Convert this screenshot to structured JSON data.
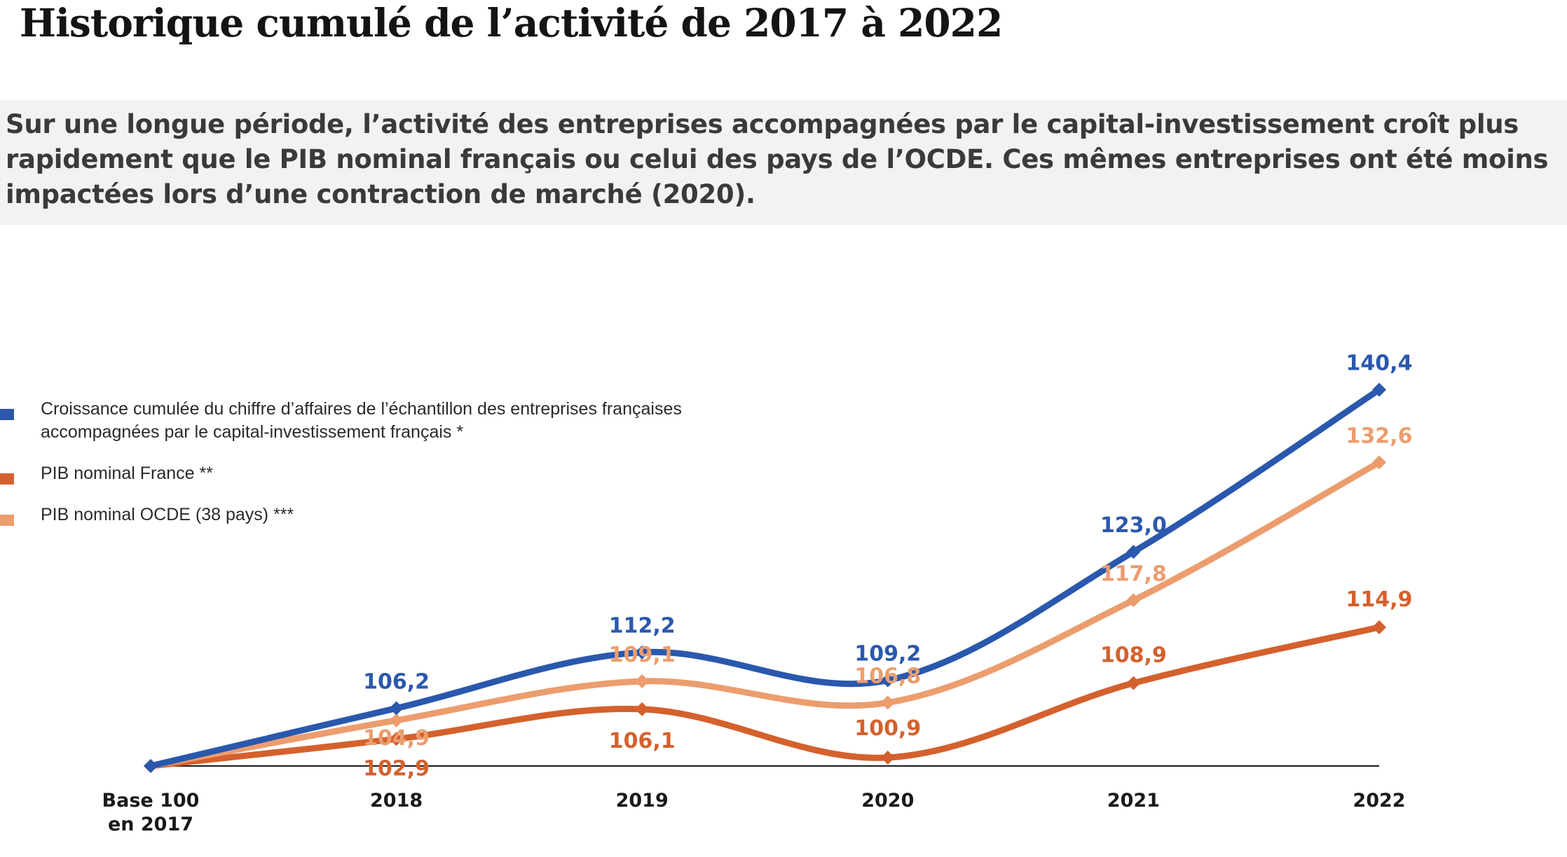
{
  "title": "Historique cumulé de l’activité de 2017 à 2022",
  "subtitle": "Sur une longue période, l’activité des entreprises accompagnées par le capital-investissement croît plus rapidement que le PIB nominal français ou celui des pays de l’OCDE. Ces mêmes entreprises ont été moins impactées lors d’une contraction de marché (2020).",
  "colors": {
    "blue": "#2a58ad",
    "orange": "#d4612d",
    "peach": "#ec9d6e",
    "axis": "#1a1a1a",
    "banner": "#f2f2f0"
  },
  "chart_data": {
    "type": "line",
    "categories": [
      "Base 100\nen 2017",
      "2018",
      "2019",
      "2020",
      "2021",
      "2022"
    ],
    "ylim": [
      100,
      141
    ],
    "series": [
      {
        "name": "Croissance cumulée du chiffre d’affaires de l’échantillon des entreprises françaises accompagnées par le capital-investissement français *",
        "color": "#2a58ad",
        "values": [
          100,
          106.2,
          112.2,
          109.2,
          123.0,
          140.4
        ],
        "labels": [
          "",
          "106,2",
          "112,2",
          "109,2",
          "123,0",
          "140,4"
        ]
      },
      {
        "name": "PIB nominal France **",
        "color": "#d4612d",
        "values": [
          100,
          102.9,
          106.1,
          100.9,
          108.9,
          114.9
        ],
        "labels": [
          "",
          "102,9",
          "106,1",
          "100,9",
          "108,9",
          "114,9"
        ]
      },
      {
        "name": "PIB nominal OCDE (38 pays) ***",
        "color": "#ec9d6e",
        "values": [
          100,
          104.9,
          109.1,
          106.8,
          117.8,
          132.6
        ],
        "labels": [
          "",
          "104,9",
          "109,1",
          "106,8",
          "117,8",
          "132,6"
        ]
      }
    ],
    "legend": {
      "position": "left",
      "items": [
        {
          "line1": "Croissance cumulée du chiffre d’affaires de l’échantillon des entreprises françaises",
          "line2": "accompagnées par le capital-investissement français *"
        },
        {
          "line1": "PIB nominal France **"
        },
        {
          "line1": "PIB nominal OCDE (38 pays) ***"
        }
      ]
    }
  }
}
